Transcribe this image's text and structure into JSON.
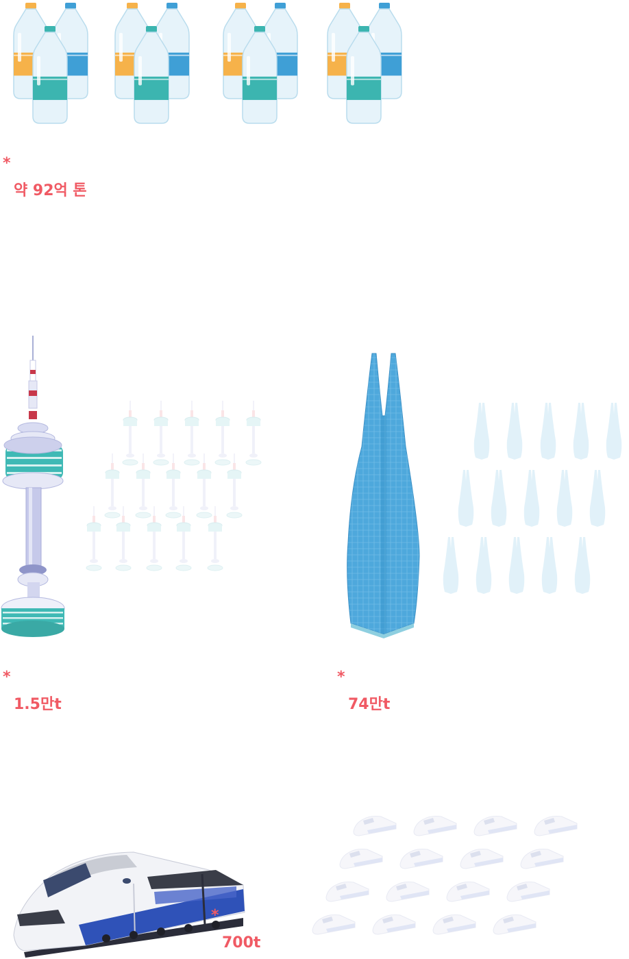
{
  "bottles_section": {
    "asterisk": "*",
    "amount": "약 92억 톤",
    "bottle_icon": "water-bottle-icon",
    "bottle_group_count": 4
  },
  "tower_section": {
    "asterisk": "*",
    "amount": "1.5만t",
    "main_icon": "seoul-tower-icon",
    "small_icon": "tower-outline-icon",
    "small_count": 15
  },
  "skyscraper_section": {
    "asterisk": "*",
    "amount": "74만t",
    "main_icon": "skyscraper-icon",
    "small_icon": "skyscraper-outline-icon",
    "small_count": 15
  },
  "train_section": {
    "asterisk": "*",
    "amount": "700t",
    "main_icon": "high-speed-train-icon",
    "small_icon": "train-outline-icon",
    "small_count": 16
  },
  "colors": {
    "accent": "#f05a64",
    "bottle_orange": "#f6b24a",
    "bottle_blue": "#3f9fd6",
    "bottle_teal": "#3cb5b0",
    "tower_teal": "#3fb9b5",
    "skyscraper_blue": "#4ea8dc",
    "train_blue": "#2f52b8"
  }
}
